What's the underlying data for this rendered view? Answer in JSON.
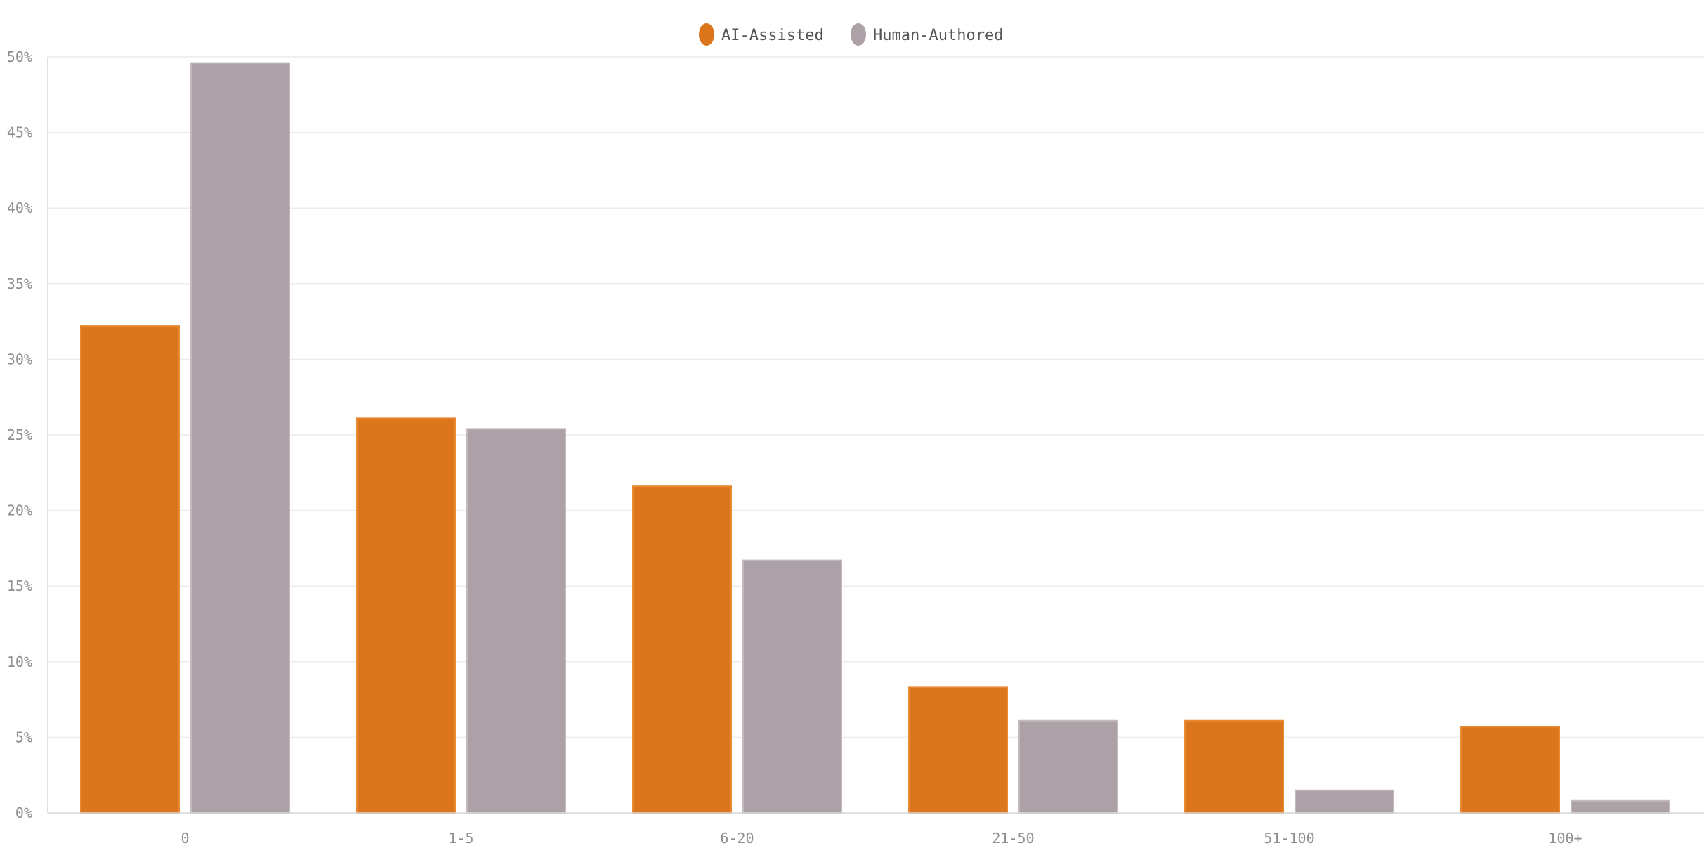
{
  "chart_data": {
    "type": "bar",
    "categories": [
      "0",
      "1-5",
      "6-20",
      "21-50",
      "51-100",
      "100+"
    ],
    "series": [
      {
        "name": "AI-Assisted",
        "color": "#dc761c",
        "values": [
          32.2,
          26.1,
          21.6,
          8.3,
          6.1,
          5.7
        ]
      },
      {
        "name": "Human-Authored",
        "color": "#aba1a6",
        "values": [
          49.6,
          25.4,
          16.7,
          6.1,
          1.5,
          0.8
        ]
      }
    ],
    "y_ticks": [
      "0%",
      "5%",
      "10%",
      "15%",
      "20%",
      "25%",
      "30%",
      "35%",
      "40%",
      "45%",
      "50%"
    ],
    "ylim": [
      0,
      50
    ],
    "grid": true,
    "legend_position": "top-center"
  }
}
